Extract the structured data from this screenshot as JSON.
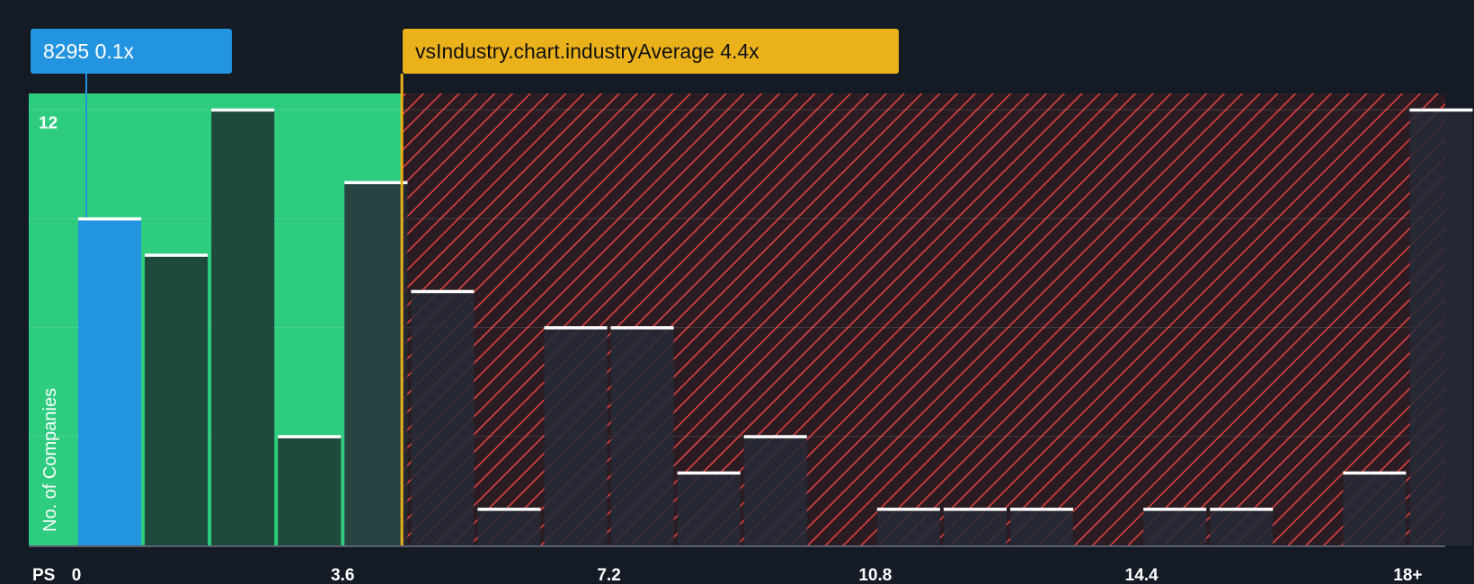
{
  "chart_data": {
    "type": "bar",
    "xlabel": "PS",
    "ylabel": "No. of Companies",
    "x_ticks": [
      "0",
      "3.6",
      "7.2",
      "10.8",
      "14.4",
      "18+"
    ],
    "y_tick_labels": [
      "12"
    ],
    "ylim": [
      0,
      12.5
    ],
    "grid": true,
    "bin_width": 0.9,
    "bin_starts": [
      0,
      0.9,
      1.8,
      2.7,
      3.6,
      4.5,
      5.4,
      6.3,
      7.2,
      8.1,
      9.0,
      9.9,
      10.8,
      11.7,
      12.6,
      13.5,
      14.4,
      15.3,
      16.2,
      17.1,
      18.0
    ],
    "values": [
      9,
      8,
      12,
      3,
      10,
      7,
      1,
      6,
      6,
      2,
      3,
      0,
      1,
      1,
      1,
      0,
      1,
      1,
      0,
      2,
      12
    ],
    "company": {
      "label": "8295",
      "value_text": "0.1x",
      "value": 0.1,
      "bin_index": 0
    },
    "industry_average": {
      "label": "vsIndustry.chart.industryAverage",
      "value_text": "4.4x",
      "value": 4.4
    },
    "colors": {
      "background": "#151b24",
      "company_bar": "#2394e0",
      "fair_zone": "#2ecc7f",
      "peer_bar_fair": "#1e4a3b",
      "peer_bar_over": "#262a37",
      "over_zone_hatch": "#e0413f",
      "industry_line": "#eab11b",
      "bar_cap": "#ffffff",
      "axis_text": "#ffffff"
    }
  }
}
